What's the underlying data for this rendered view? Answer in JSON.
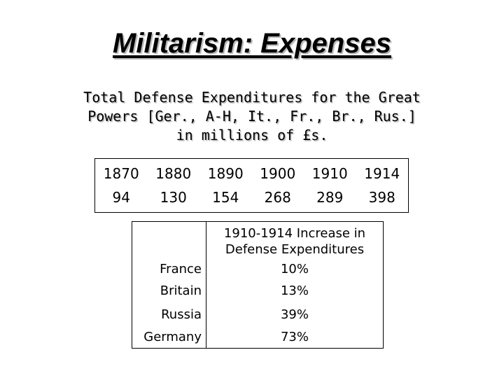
{
  "title": "Militarism: Expenses",
  "subtitle_lines": [
    "Total Defense Expenditures for the Great",
    "Powers [Ger., A-H, It., Fr., Br., Rus.]",
    "in millions of £s."
  ],
  "expenditures": {
    "years": [
      "1870",
      "1880",
      "1890",
      "1900",
      "1910",
      "1914"
    ],
    "values": [
      "94",
      "130",
      "154",
      "268",
      "289",
      "398"
    ]
  },
  "increase_table": {
    "header_lines": [
      "1910-1914 Increase in",
      "Defense Expenditures"
    ],
    "rows": [
      {
        "country": "France",
        "value": "10%"
      },
      {
        "country": "Britain",
        "value": "13%"
      },
      {
        "country": "Russia",
        "value": "39%"
      },
      {
        "country": "Germany",
        "value": "73%"
      }
    ]
  }
}
